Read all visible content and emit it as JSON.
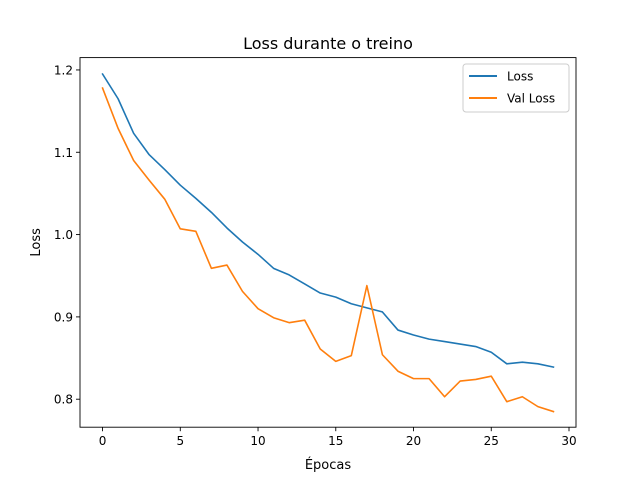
{
  "chart_data": {
    "type": "line",
    "title": "Loss durante o treino",
    "xlabel": "Épocas",
    "ylabel": "Loss",
    "xlim": [
      -1.45,
      30.45
    ],
    "ylim": [
      0.766,
      1.215
    ],
    "xticks": [
      0,
      5,
      10,
      15,
      20,
      25,
      30
    ],
    "yticks": [
      0.8,
      0.9,
      1.0,
      1.1,
      1.2
    ],
    "ytick_labels": [
      "0.8",
      "0.9",
      "1.0",
      "1.1",
      "1.2"
    ],
    "grid": false,
    "legend_position": "top-right",
    "x": [
      0,
      1,
      2,
      3,
      4,
      5,
      6,
      7,
      8,
      9,
      10,
      11,
      12,
      13,
      14,
      15,
      16,
      17,
      18,
      19,
      20,
      21,
      22,
      23,
      24,
      25,
      26,
      27,
      28,
      29
    ],
    "series": [
      {
        "name": "Loss",
        "color": "#1f77b4",
        "values": [
          1.195,
          1.165,
          1.123,
          1.097,
          1.079,
          1.06,
          1.044,
          1.027,
          1.008,
          0.991,
          0.976,
          0.959,
          0.951,
          0.94,
          0.929,
          0.924,
          0.916,
          0.911,
          0.906,
          0.884,
          0.878,
          0.873,
          0.87,
          0.867,
          0.864,
          0.857,
          0.843,
          0.845,
          0.843,
          0.839
        ]
      },
      {
        "name": "Val Loss",
        "color": "#ff7f0e",
        "values": [
          1.178,
          1.129,
          1.09,
          1.066,
          1.043,
          1.007,
          1.004,
          0.959,
          0.963,
          0.931,
          0.91,
          0.899,
          0.893,
          0.896,
          0.861,
          0.846,
          0.853,
          0.938,
          0.854,
          0.834,
          0.825,
          0.825,
          0.803,
          0.822,
          0.824,
          0.828,
          0.797,
          0.803,
          0.791,
          0.785
        ]
      }
    ]
  }
}
